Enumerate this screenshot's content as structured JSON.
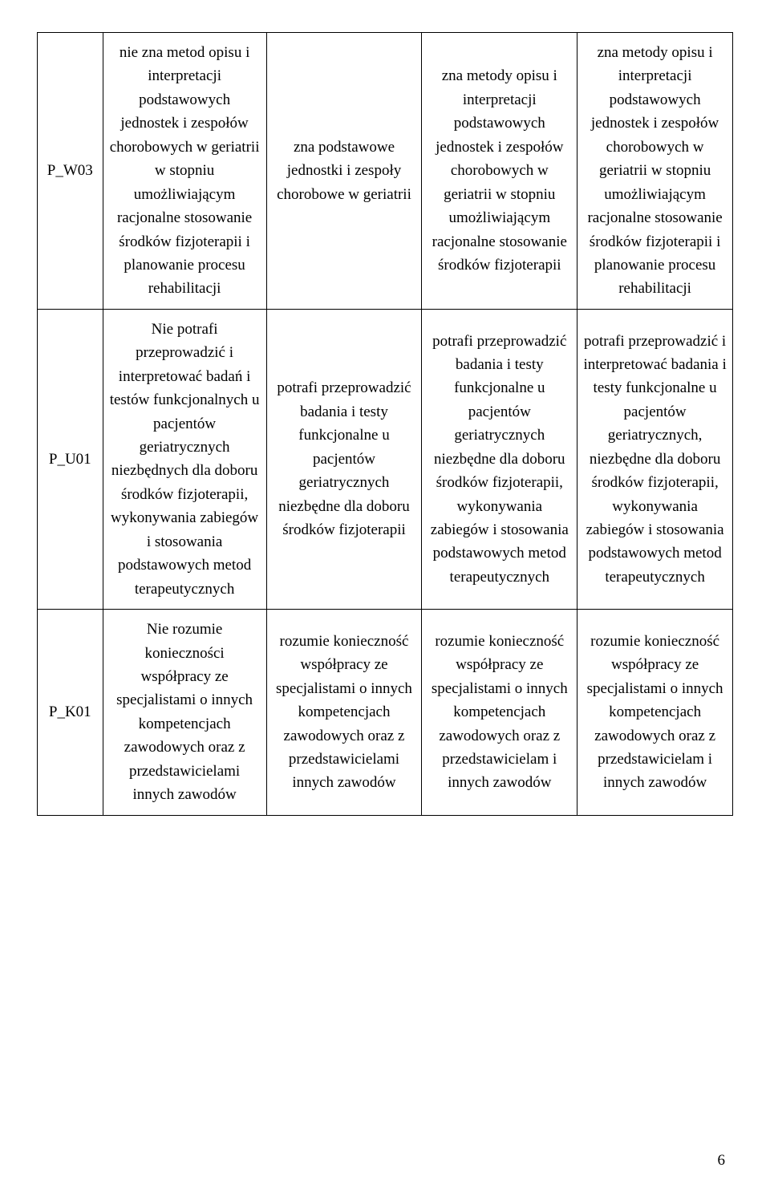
{
  "page_number": "6",
  "rows": [
    {
      "code": "P_W03",
      "c1": "nie zna metod opisu i interpretacji podstawowych jednostek i zespołów chorobowych w geriatrii w stopniu umożliwiającym racjonalne stosowanie środków fizjoterapii i planowanie procesu rehabilitacji",
      "c2": "zna  podstawowe jednostki i zespoły chorobowe w geriatrii",
      "c3": "zna metody opisu i interpretacji podstawowych jednostek i zespołów chorobowych w geriatrii w stopniu umożliwiającym racjonalne stosowanie środków fizjoterapii",
      "c4": "zna metody opisu i interpretacji podstawowych jednostek i zespołów chorobowych w geriatrii w stopniu umożliwiającym racjonalne stosowanie środków fizjoterapii i planowanie procesu rehabilitacji"
    },
    {
      "code": "P_U01",
      "c1": "Nie potrafi przeprowadzić i interpretować badań i testów funkcjonalnych u pacjentów geriatrycznych niezbędnych dla doboru środków fizjoterapii, wykonywania zabiegów i stosowania podstawowych metod terapeutycznych",
      "c2": "potrafi przeprowadzić badania i testy funkcjonalne u pacjentów geriatrycznych niezbędne dla doboru środków fizjoterapii",
      "c3": "potrafi przeprowadzić badania i testy funkcjonalne u pacjentów geriatrycznych niezbędne dla doboru środków fizjoterapii, wykonywania zabiegów i stosowania podstawowych metod terapeutycznych",
      "c4": "potrafi przeprowadzić i interpretować badania i testy funkcjonalne u pacjentów geriatrycznych, niezbędne dla doboru środków fizjoterapii, wykonywania zabiegów i stosowania podstawowych metod terapeutycznych"
    },
    {
      "code": "P_K01",
      "c1": "Nie rozumie konieczności współpracy ze specjalistami o innych kompetencjach zawodowych oraz z przedstawicielami innych zawodów",
      "c2": "rozumie konieczność współpracy ze specjalistami o innych kompetencjach zawodowych oraz z przedstawicielami innych zawodów",
      "c3": "rozumie konieczność współpracy ze specjalistami o innych kompetencjach zawodowych oraz z przedstawicielam i innych zawodów",
      "c4": "rozumie konieczność współpracy ze specjalistami o innych kompetencjach zawodowych oraz z przedstawicielam i innych zawodów"
    }
  ]
}
